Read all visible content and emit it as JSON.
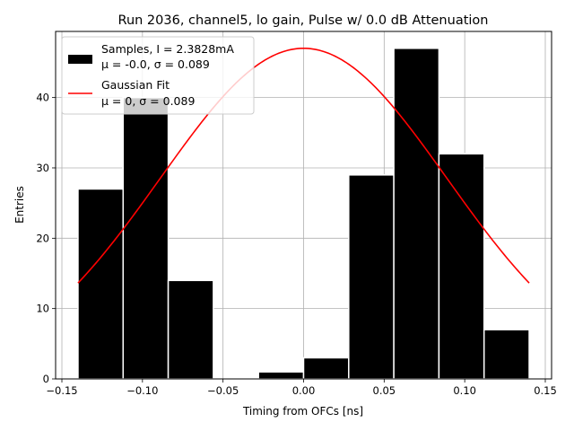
{
  "chart_data": {
    "type": "bar",
    "title": "Run 2036, channel5, lo gain, Pulse w/ 0.0 dB Attenuation",
    "xlabel": "Timing from OFCs [ns]",
    "ylabel": "Entries",
    "xlim": [
      -0.1539,
      0.1539
    ],
    "ylim": [
      0,
      49.4
    ],
    "grid": true,
    "x_ticks": [
      -0.15,
      -0.1,
      -0.05,
      0.0,
      0.05,
      0.1,
      0.15
    ],
    "x_tick_labels": [
      "−0.15",
      "−0.10",
      "−0.05",
      "0.00",
      "0.05",
      "0.10",
      "0.15"
    ],
    "y_ticks": [
      0,
      10,
      20,
      30,
      40
    ],
    "y_tick_labels": [
      "0",
      "10",
      "20",
      "30",
      "40"
    ],
    "histogram": {
      "name": "Samples, I = 2.3828mA",
      "stats": "μ = -0.0, σ = 0.089",
      "color": "#000000",
      "bin_edges": [
        -0.14,
        -0.112,
        -0.084,
        -0.056,
        -0.028,
        0.0,
        0.028,
        0.056,
        0.084,
        0.112,
        0.14
      ],
      "counts": [
        27,
        40,
        14,
        0,
        1,
        3,
        29,
        47,
        32,
        7
      ]
    },
    "fit": {
      "name": "Gaussian Fit",
      "stats": "μ = 0, σ = 0.089",
      "color": "#ff0000",
      "mu": 0,
      "sigma": 0.089,
      "amplitude": 47.0,
      "x_range": [
        -0.14,
        0.14
      ]
    },
    "legend_position": "upper-left"
  }
}
